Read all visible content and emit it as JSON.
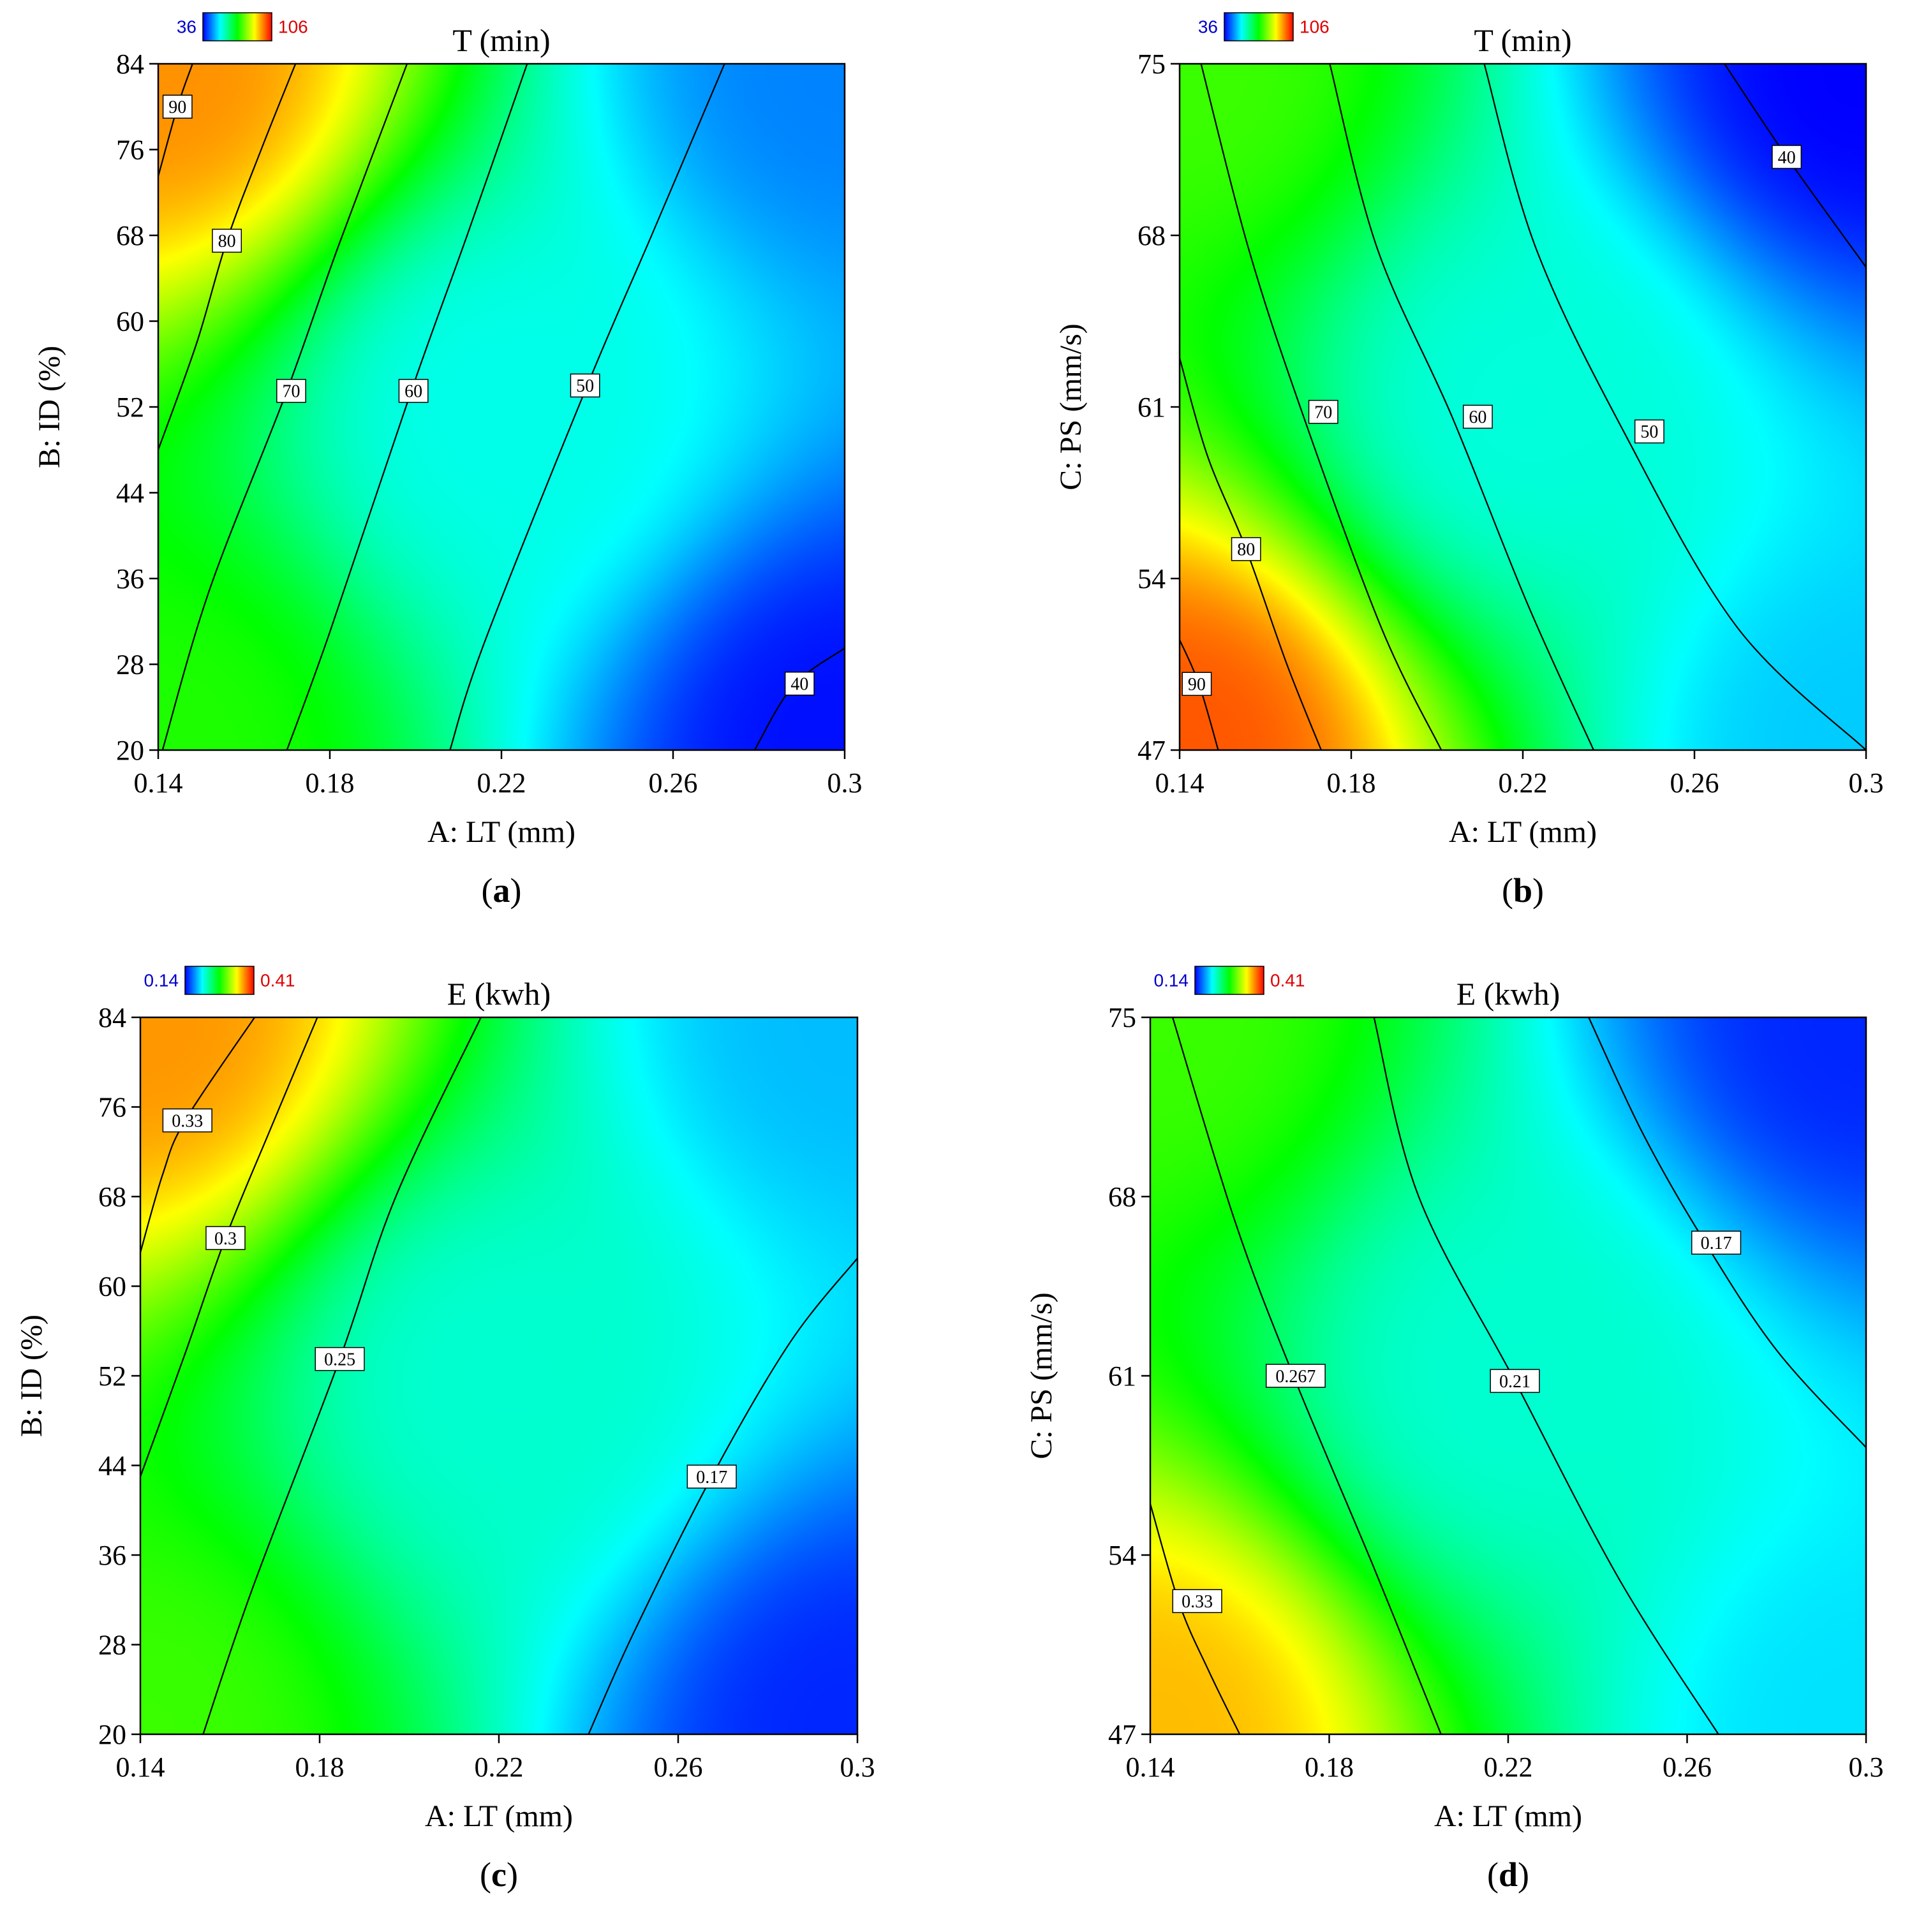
{
  "chart_data": [
    {
      "type": "heatmap",
      "subtype": "contour",
      "panel_label": "a",
      "title": "T (min)",
      "xlabel": "A: LT (mm)",
      "ylabel": "B: ID (%)",
      "xlim": [
        0.14,
        0.3
      ],
      "ylim": [
        20,
        84
      ],
      "x_ticks": [
        "0.14",
        "0.18",
        "0.22",
        "0.26",
        "0.3"
      ],
      "y_ticks": [
        "20",
        "28",
        "36",
        "44",
        "52",
        "60",
        "68",
        "76",
        "84"
      ],
      "colorbar": {
        "min_label": "36",
        "max_label": "106",
        "min": 36,
        "max": 106,
        "min_color": "#0000ff",
        "max_color": "#ff0000"
      },
      "contour_levels": [
        {
          "label": "90",
          "points": [
            [
              0.14,
              73.5
            ],
            [
              0.1445,
              80
            ],
            [
              0.148,
              84
            ]
          ]
        },
        {
          "label": "80",
          "points": [
            [
              0.14,
              48
            ],
            [
              0.149,
              58
            ],
            [
              0.156,
              67.5
            ],
            [
              0.164,
              76
            ],
            [
              0.172,
              84
            ]
          ]
        },
        {
          "label": "70",
          "points": [
            [
              0.141,
              20
            ],
            [
              0.152,
              35
            ],
            [
              0.17,
              53.5
            ],
            [
              0.182,
              67
            ],
            [
              0.198,
              84
            ]
          ]
        },
        {
          "label": "60",
          "points": [
            [
              0.17,
              20
            ],
            [
              0.18,
              31
            ],
            [
              0.199,
              53.5
            ],
            [
              0.212,
              68
            ],
            [
              0.226,
              84
            ]
          ]
        },
        {
          "label": "50",
          "points": [
            [
              0.208,
              20
            ],
            [
              0.216,
              30
            ],
            [
              0.24,
              54
            ],
            [
              0.255,
              68
            ],
            [
              0.272,
              84
            ]
          ]
        },
        {
          "label": "40",
          "points": [
            [
              0.279,
              20
            ],
            [
              0.288,
              26
            ],
            [
              0.3,
              29.5
            ]
          ]
        }
      ],
      "label_positions": [
        {
          "label": "90",
          "x": 0.1445,
          "y": 80
        },
        {
          "label": "80",
          "x": 0.156,
          "y": 67.5
        },
        {
          "label": "70",
          "x": 0.171,
          "y": 53.5
        },
        {
          "label": "60",
          "x": 0.1995,
          "y": 53.5
        },
        {
          "label": "50",
          "x": 0.2395,
          "y": 54
        },
        {
          "label": "40",
          "x": 0.2895,
          "y": 26.2
        }
      ],
      "surface_samples": [
        {
          "x": 0.14,
          "y": 84,
          "value": 96
        },
        {
          "x": 0.14,
          "y": 20,
          "value": 73
        },
        {
          "x": 0.22,
          "y": 52,
          "value": 55
        },
        {
          "x": 0.3,
          "y": 84,
          "value": 45
        },
        {
          "x": 0.3,
          "y": 20,
          "value": 37
        }
      ]
    },
    {
      "type": "heatmap",
      "subtype": "contour",
      "panel_label": "b",
      "title": "T (min)",
      "xlabel": "A: LT (mm)",
      "ylabel": "C: PS (mm/s)",
      "xlim": [
        0.14,
        0.3
      ],
      "ylim": [
        47,
        75
      ],
      "x_ticks": [
        "0.14",
        "0.18",
        "0.22",
        "0.26",
        "0.3"
      ],
      "y_ticks": [
        "47",
        "54",
        "61",
        "68",
        "75"
      ],
      "colorbar": {
        "min_label": "36",
        "max_label": "106",
        "min": 36,
        "max": 106,
        "min_color": "#0000ff",
        "max_color": "#ff0000"
      },
      "contour_levels": [
        {
          "label": "90",
          "points": [
            [
              0.14,
              51.5
            ],
            [
              0.1445,
              49.7
            ],
            [
              0.149,
              47
            ]
          ]
        },
        {
          "label": "80",
          "points": [
            [
              0.14,
              63
            ],
            [
              0.1465,
              59
            ],
            [
              0.1555,
              55.2
            ],
            [
              0.165,
              50.5
            ],
            [
              0.173,
              47
            ]
          ]
        },
        {
          "label": "70",
          "points": [
            [
              0.145,
              75
            ],
            [
              0.156,
              67.5
            ],
            [
              0.1685,
              60.8
            ],
            [
              0.187,
              52
            ],
            [
              0.201,
              47
            ]
          ]
        },
        {
          "label": "60",
          "points": [
            [
              0.175,
              75
            ],
            [
              0.186,
              67.5
            ],
            [
              0.2035,
              60.6
            ],
            [
              0.221,
              53
            ],
            [
              0.2365,
              47
            ]
          ]
        },
        {
          "label": "50",
          "points": [
            [
              0.211,
              75
            ],
            [
              0.223,
              67.5
            ],
            [
              0.2435,
              60
            ],
            [
              0.27,
              52
            ],
            [
              0.3,
              47
            ]
          ]
        },
        {
          "label": "40",
          "points": [
            [
              0.267,
              75
            ],
            [
              0.2815,
              71.2
            ],
            [
              0.3,
              66.7
            ]
          ]
        }
      ],
      "label_positions": [
        {
          "label": "90",
          "x": 0.144,
          "y": 49.7
        },
        {
          "label": "80",
          "x": 0.1555,
          "y": 55.2
        },
        {
          "label": "70",
          "x": 0.1735,
          "y": 60.8
        },
        {
          "label": "60",
          "x": 0.2095,
          "y": 60.6
        },
        {
          "label": "50",
          "x": 0.2495,
          "y": 60
        },
        {
          "label": "40",
          "x": 0.2815,
          "y": 71.2
        }
      ],
      "surface_samples": [
        {
          "x": 0.14,
          "y": 47,
          "value": 100
        },
        {
          "x": 0.14,
          "y": 75,
          "value": 75
        },
        {
          "x": 0.22,
          "y": 61,
          "value": 56
        },
        {
          "x": 0.3,
          "y": 47,
          "value": 50
        },
        {
          "x": 0.3,
          "y": 75,
          "value": 36
        }
      ]
    },
    {
      "type": "heatmap",
      "subtype": "contour",
      "panel_label": "c",
      "title": "E (kwh)",
      "xlabel": "A: LT (mm)",
      "ylabel": "B: ID (%)",
      "xlim": [
        0.14,
        0.3
      ],
      "ylim": [
        20,
        84
      ],
      "x_ticks": [
        "0.14",
        "0.18",
        "0.22",
        "0.26",
        "0.3"
      ],
      "y_ticks": [
        "20",
        "28",
        "36",
        "44",
        "52",
        "60",
        "68",
        "76",
        "84"
      ],
      "colorbar": {
        "min_label": "0.14",
        "max_label": "0.41",
        "min": 0.14,
        "max": 0.41,
        "min_color": "#0000ff",
        "max_color": "#ff0000"
      },
      "contour_levels": [
        {
          "label": "0.33",
          "points": [
            [
              0.14,
              63
            ],
            [
              0.145,
              70
            ],
            [
              0.15,
              74.8
            ],
            [
              0.1655,
              84
            ]
          ]
        },
        {
          "label": "0.3",
          "points": [
            [
              0.14,
              43
            ],
            [
              0.15,
              54
            ],
            [
              0.159,
              64.3
            ],
            [
              0.169,
              74
            ],
            [
              0.1795,
              84
            ]
          ]
        },
        {
          "label": "0.25",
          "points": [
            [
              0.154,
              20
            ],
            [
              0.165,
              33
            ],
            [
              0.1845,
              53.5
            ],
            [
              0.197,
              68
            ],
            [
              0.216,
              84
            ]
          ]
        },
        {
          "label": "0.17",
          "points": [
            [
              0.24,
              20
            ],
            [
              0.25,
              29
            ],
            [
              0.2675,
              43
            ],
            [
              0.285,
              55
            ],
            [
              0.3,
              62.5
            ]
          ]
        }
      ],
      "label_positions": [
        {
          "label": "0.33",
          "x": 0.1505,
          "y": 74.8
        },
        {
          "label": "0.3",
          "x": 0.159,
          "y": 64.3
        },
        {
          "label": "0.25",
          "x": 0.1845,
          "y": 53.5
        },
        {
          "label": "0.17",
          "x": 0.2675,
          "y": 43
        }
      ],
      "surface_samples": [
        {
          "x": 0.14,
          "y": 84,
          "value": 0.37
        },
        {
          "x": 0.14,
          "y": 20,
          "value": 0.29
        },
        {
          "x": 0.22,
          "y": 52,
          "value": 0.22
        },
        {
          "x": 0.3,
          "y": 84,
          "value": 0.19
        },
        {
          "x": 0.3,
          "y": 20,
          "value": 0.15
        }
      ]
    },
    {
      "type": "heatmap",
      "subtype": "contour",
      "panel_label": "d",
      "title": "E (kwh)",
      "xlabel": "A: LT (mm)",
      "ylabel": "C: PS (mm/s)",
      "xlim": [
        0.14,
        0.3
      ],
      "ylim": [
        47,
        75
      ],
      "x_ticks": [
        "0.14",
        "0.18",
        "0.22",
        "0.26",
        "0.3"
      ],
      "y_ticks": [
        "47",
        "54",
        "61",
        "68",
        "75"
      ],
      "colorbar": {
        "min_label": "0.14",
        "max_label": "0.41",
        "min": 0.14,
        "max": 0.41,
        "min_color": "#0000ff",
        "max_color": "#ff0000"
      },
      "contour_levels": [
        {
          "label": "0.33",
          "points": [
            [
              0.14,
              56
            ],
            [
              0.1465,
              52.1
            ],
            [
              0.153,
              49.5
            ],
            [
              0.16,
              47
            ]
          ]
        },
        {
          "label": "0.267",
          "points": [
            [
              0.145,
              75
            ],
            [
              0.159,
              67
            ],
            [
              0.172,
              61
            ],
            [
              0.19,
              53.5
            ],
            [
              0.205,
              47
            ]
          ]
        },
        {
          "label": "0.21",
          "points": [
            [
              0.19,
              75
            ],
            [
              0.2,
              68
            ],
            [
              0.2215,
              60.8
            ],
            [
              0.245,
              53
            ],
            [
              0.267,
              47
            ]
          ]
        },
        {
          "label": "0.17",
          "points": [
            [
              0.238,
              75
            ],
            [
              0.25,
              70.5
            ],
            [
              0.263,
              66.5
            ],
            [
              0.28,
              62
            ],
            [
              0.3,
              58.2
            ]
          ]
        }
      ],
      "label_positions": [
        {
          "label": "0.33",
          "x": 0.1505,
          "y": 52.2
        },
        {
          "label": "0.267",
          "x": 0.1725,
          "y": 61
        },
        {
          "label": "0.21",
          "x": 0.2215,
          "y": 60.8
        },
        {
          "label": "0.17",
          "x": 0.2665,
          "y": 66.2
        }
      ],
      "surface_samples": [
        {
          "x": 0.14,
          "y": 47,
          "value": 0.36
        },
        {
          "x": 0.14,
          "y": 75,
          "value": 0.29
        },
        {
          "x": 0.22,
          "y": 61,
          "value": 0.22
        },
        {
          "x": 0.3,
          "y": 47,
          "value": 0.2
        },
        {
          "x": 0.3,
          "y": 75,
          "value": 0.15
        }
      ]
    }
  ]
}
